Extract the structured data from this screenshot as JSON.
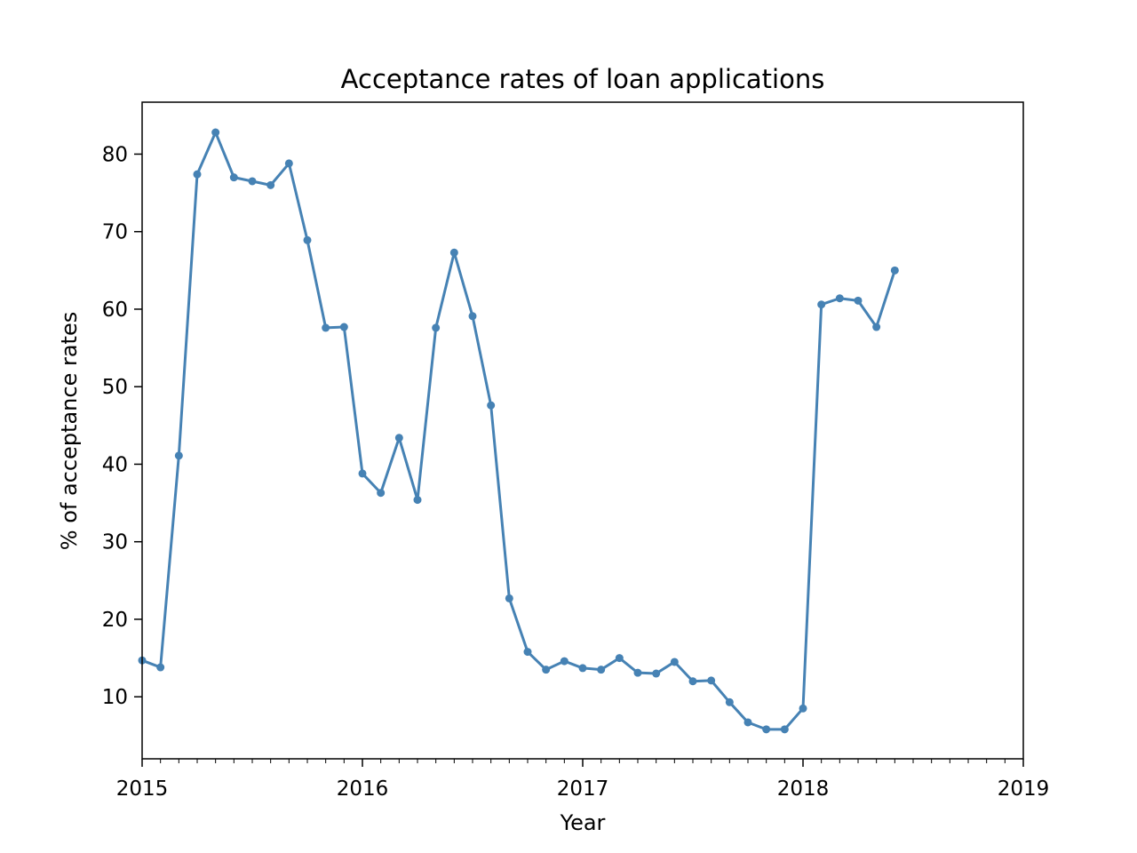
{
  "chart_data": {
    "type": "line",
    "title": "Acceptance rates of loan applications",
    "xlabel": "Year",
    "ylabel": "% of acceptance rates",
    "xlim": [
      "2015-01",
      "2019-01"
    ],
    "ylim": [
      2,
      86.7
    ],
    "x_ticks": [
      "2015",
      "2016",
      "2017",
      "2018",
      "2019"
    ],
    "y_ticks": [
      10,
      20,
      30,
      40,
      50,
      60,
      70,
      80
    ],
    "grid": false,
    "color": "#4682b4",
    "series": [
      {
        "x": [
          "2015-01",
          "2015-02",
          "2015-03",
          "2015-04",
          "2015-05",
          "2015-06",
          "2015-07",
          "2015-08",
          "2015-09",
          "2015-10",
          "2015-11",
          "2015-12",
          "2016-01",
          "2016-02",
          "2016-03",
          "2016-04",
          "2016-05",
          "2016-06",
          "2016-07",
          "2016-08",
          "2016-09",
          "2016-10",
          "2016-11",
          "2016-12",
          "2017-01",
          "2017-02",
          "2017-03",
          "2017-04",
          "2017-05",
          "2017-06",
          "2017-07",
          "2017-08",
          "2017-09",
          "2017-10",
          "2017-11",
          "2017-12",
          "2018-01",
          "2018-02",
          "2018-03",
          "2018-04",
          "2018-05",
          "2018-06"
        ],
        "values": [
          14.7,
          13.8,
          41.1,
          77.4,
          82.8,
          77.0,
          76.5,
          76.0,
          78.8,
          68.9,
          57.6,
          57.7,
          38.8,
          36.3,
          43.4,
          35.4,
          57.6,
          67.3,
          59.1,
          47.6,
          22.7,
          15.8,
          13.5,
          14.6,
          13.7,
          13.5,
          15.0,
          13.1,
          13.0,
          14.5,
          12.0,
          12.1,
          9.3,
          6.7,
          5.8,
          5.8,
          8.5,
          60.6,
          61.4,
          61.1,
          57.7,
          65.0
        ]
      }
    ]
  }
}
